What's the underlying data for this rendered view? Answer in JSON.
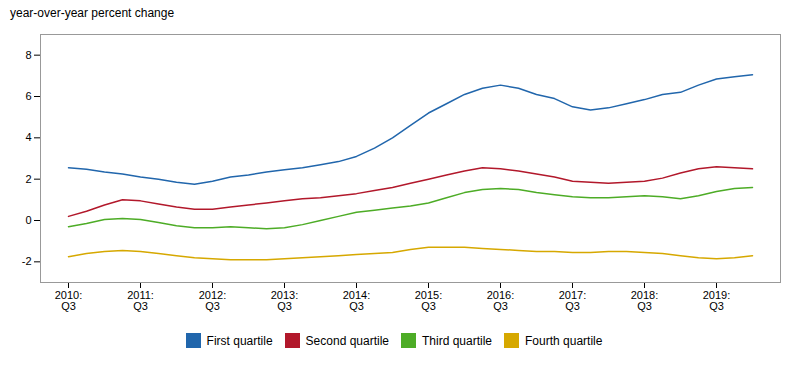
{
  "chart_data": {
    "type": "line",
    "ylabel": "year-over-year percent change",
    "categories": [
      "2010:\nQ3",
      null,
      null,
      null,
      "2011:\nQ3",
      null,
      null,
      null,
      "2012:\nQ3",
      null,
      null,
      null,
      "2013:\nQ3",
      null,
      null,
      null,
      "2014:\nQ3",
      null,
      null,
      null,
      "2015:\nQ3",
      null,
      null,
      null,
      "2016:\nQ3",
      null,
      null,
      null,
      "2017:\nQ3",
      null,
      null,
      null,
      "2018:\nQ3",
      null,
      null,
      null,
      "2019:\nQ3",
      null,
      null
    ],
    "series": [
      {
        "name": "First quartile",
        "color": "#2166ac",
        "values": [
          2.55,
          2.48,
          2.35,
          2.25,
          2.1,
          2.0,
          1.85,
          1.75,
          1.9,
          2.1,
          2.2,
          2.35,
          2.45,
          2.55,
          2.7,
          2.85,
          3.1,
          3.5,
          4.0,
          4.6,
          5.2,
          5.65,
          6.1,
          6.4,
          6.55,
          6.4,
          6.1,
          5.9,
          5.5,
          5.35,
          5.45,
          5.65,
          5.85,
          6.1,
          6.2,
          6.55,
          6.85,
          6.95,
          7.05
        ]
      },
      {
        "name": "Second quartile",
        "color": "#b2182b",
        "values": [
          0.2,
          0.45,
          0.75,
          1.0,
          0.95,
          0.8,
          0.65,
          0.55,
          0.55,
          0.65,
          0.75,
          0.85,
          0.95,
          1.05,
          1.1,
          1.2,
          1.3,
          1.45,
          1.6,
          1.8,
          2.0,
          2.2,
          2.4,
          2.55,
          2.5,
          2.4,
          2.25,
          2.1,
          1.9,
          1.85,
          1.8,
          1.85,
          1.9,
          2.05,
          2.3,
          2.5,
          2.6,
          2.55,
          2.5
        ]
      },
      {
        "name": "Third quartile",
        "color": "#4dac26",
        "values": [
          -0.3,
          -0.15,
          0.05,
          0.1,
          0.05,
          -0.1,
          -0.25,
          -0.35,
          -0.35,
          -0.3,
          -0.35,
          -0.4,
          -0.35,
          -0.2,
          0.0,
          0.2,
          0.4,
          0.5,
          0.6,
          0.7,
          0.85,
          1.1,
          1.35,
          1.5,
          1.55,
          1.5,
          1.35,
          1.25,
          1.15,
          1.1,
          1.1,
          1.15,
          1.2,
          1.15,
          1.05,
          1.2,
          1.4,
          1.55,
          1.6
        ]
      },
      {
        "name": "Fourth quartile",
        "color": "#d6a800",
        "values": [
          -1.75,
          -1.6,
          -1.5,
          -1.45,
          -1.5,
          -1.6,
          -1.7,
          -1.8,
          -1.85,
          -1.9,
          -1.9,
          -1.9,
          -1.85,
          -1.8,
          -1.75,
          -1.7,
          -1.65,
          -1.6,
          -1.55,
          -1.4,
          -1.3,
          -1.3,
          -1.3,
          -1.35,
          -1.4,
          -1.45,
          -1.5,
          -1.5,
          -1.55,
          -1.55,
          -1.5,
          -1.5,
          -1.55,
          -1.6,
          -1.7,
          -1.8,
          -1.85,
          -1.8,
          -1.7
        ]
      }
    ],
    "ylim": [
      -3,
      9
    ],
    "yticks": [
      -2,
      0,
      2,
      4,
      6,
      8
    ],
    "legend": "bottom"
  }
}
